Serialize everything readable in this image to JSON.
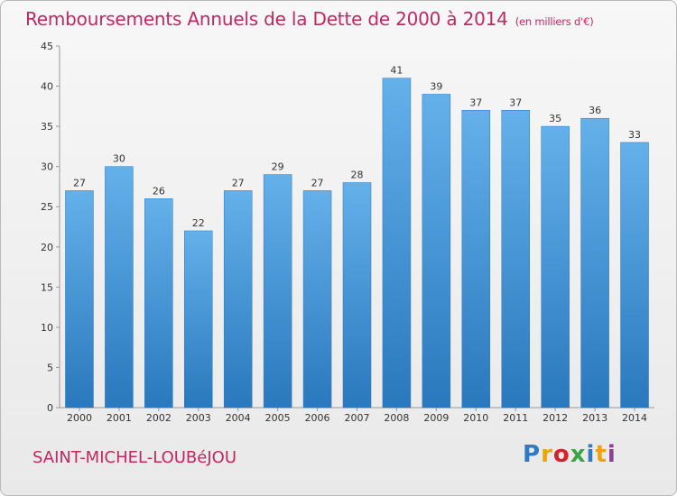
{
  "title": "Remboursements Annuels de la Dette de 2000 à 2014",
  "subtitle": "(en milliers d'€)",
  "commune": "SAINT-MICHEL-LOUBéJOU",
  "logo": {
    "letters": [
      "P",
      "r",
      "o",
      "x",
      "i",
      "t",
      "i"
    ],
    "colors": [
      "#2e7bc4",
      "#f0a30a",
      "#d6232a",
      "#3aa545",
      "#2e7bc4",
      "#f0a30a",
      "#8d3f96"
    ]
  },
  "colors": {
    "title": "#c2285f",
    "bar_light": "#64b0ea",
    "bar_dark": "#2a78bd",
    "axis": "#999999"
  },
  "chart_data": {
    "type": "bar",
    "categories": [
      "2000",
      "2001",
      "2002",
      "2003",
      "2004",
      "2005",
      "2006",
      "2007",
      "2008",
      "2009",
      "2010",
      "2011",
      "2012",
      "2013",
      "2014"
    ],
    "values": [
      27,
      30,
      26,
      22,
      27,
      29,
      27,
      28,
      41,
      39,
      37,
      37,
      35,
      36,
      33
    ],
    "ylim": [
      0,
      45
    ],
    "yticks": [
      0,
      5,
      10,
      15,
      20,
      25,
      30,
      35,
      40,
      45
    ],
    "grid": false,
    "data_labels": true
  }
}
